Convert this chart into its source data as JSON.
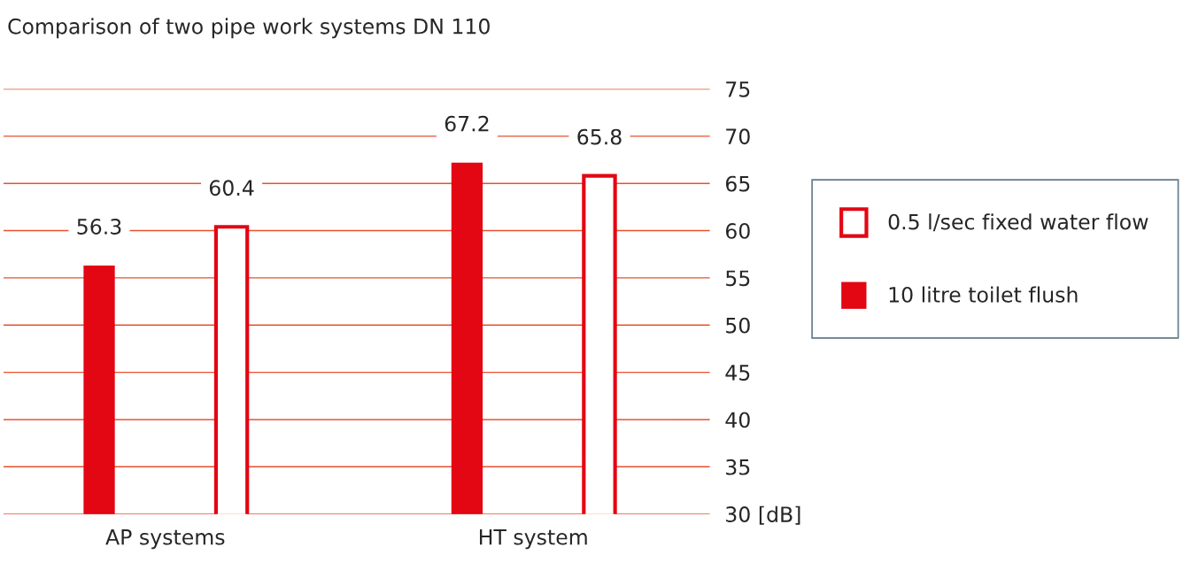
{
  "chart_data": {
    "type": "bar",
    "title": "Comparison of two pipe work systems DN 110",
    "categories": [
      "AP systems",
      "HT system"
    ],
    "series": [
      {
        "name": "10 litre toilet flush",
        "color": "#e30613",
        "values": [
          56.3,
          67.2
        ]
      },
      {
        "name": "0.5 l/sec fixed water flow",
        "color": "#e30613",
        "values": [
          60.4,
          65.8
        ]
      }
    ],
    "ylim": [
      30,
      75
    ],
    "yticks": [
      {
        "value": 30,
        "label": "30 [dB]"
      },
      35,
      40,
      45,
      50,
      55,
      60,
      65,
      70,
      75
    ],
    "grid": "y",
    "legend": "right",
    "data_labels": true
  }
}
